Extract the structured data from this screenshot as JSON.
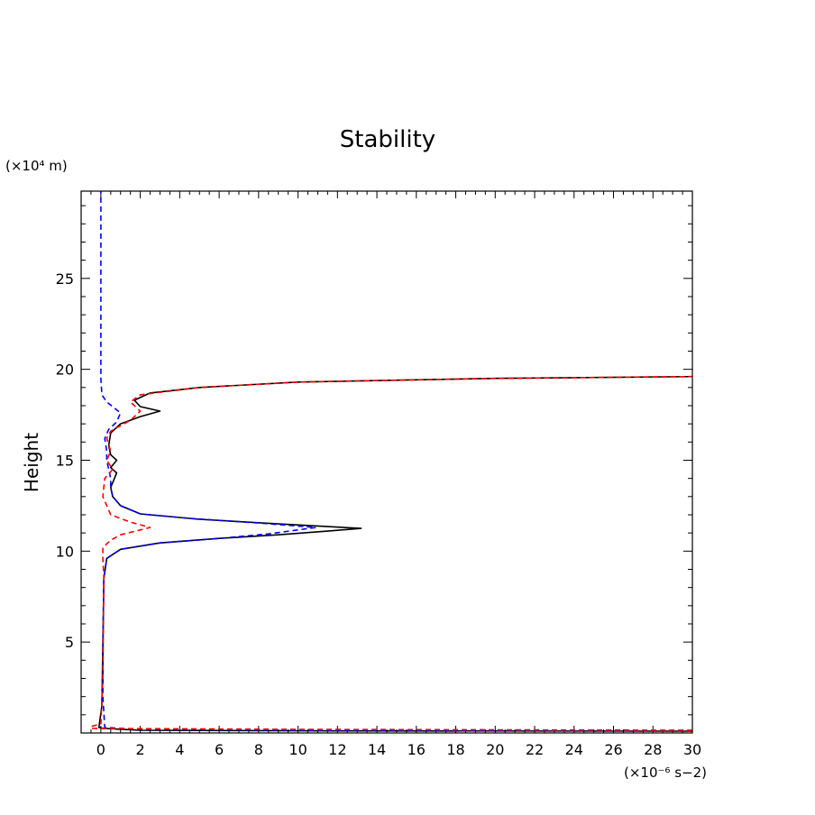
{
  "chart_data": {
    "type": "line",
    "title": "Stability",
    "ylabel": "Height",
    "xlabel": "",
    "y_unit": "(×10⁴ m)",
    "x_unit": "(×10⁻⁶ s−2)",
    "xlim": [
      -1,
      30
    ],
    "ylim": [
      0,
      29.8
    ],
    "x_ticks": [
      0,
      2,
      4,
      6,
      8,
      10,
      12,
      14,
      16,
      18,
      20,
      22,
      24,
      26,
      28,
      30
    ],
    "y_ticks": [
      5,
      10,
      15,
      20,
      25
    ],
    "grid": false,
    "legend": "none",
    "series": [
      {
        "color": "#000000",
        "dash": "solid",
        "points": [
          [
            30,
            0.1
          ],
          [
            10,
            0.12
          ],
          [
            2,
            0.15
          ],
          [
            0.2,
            0.25
          ],
          [
            -0.1,
            0.3
          ],
          [
            0.05,
            1.5
          ],
          [
            0.1,
            5
          ],
          [
            0.15,
            8.5
          ],
          [
            0.3,
            9.6
          ],
          [
            1.0,
            10.1
          ],
          [
            3.0,
            10.45
          ],
          [
            6.0,
            10.7
          ],
          [
            9.0,
            10.9
          ],
          [
            11.5,
            11.1
          ],
          [
            13.2,
            11.25
          ],
          [
            9.0,
            11.5
          ],
          [
            5.0,
            11.75
          ],
          [
            2.0,
            12.05
          ],
          [
            1.0,
            12.5
          ],
          [
            0.6,
            13.0
          ],
          [
            0.5,
            13.5
          ],
          [
            0.8,
            14.3
          ],
          [
            0.5,
            14.6
          ],
          [
            0.8,
            15.0
          ],
          [
            0.5,
            15.3
          ],
          [
            0.4,
            15.8
          ],
          [
            0.5,
            16.5
          ],
          [
            1.0,
            17.0
          ],
          [
            2.0,
            17.4
          ],
          [
            3.0,
            17.7
          ],
          [
            2.0,
            17.95
          ],
          [
            1.7,
            18.3
          ],
          [
            2.5,
            18.7
          ],
          [
            5.0,
            19.0
          ],
          [
            10.0,
            19.3
          ],
          [
            20.0,
            19.5
          ],
          [
            30.0,
            19.6
          ]
        ]
      },
      {
        "color": "#0000ff",
        "dash": "dashed",
        "points": [
          [
            30,
            0.12
          ],
          [
            10,
            0.15
          ],
          [
            2,
            0.2
          ],
          [
            0.2,
            0.3
          ],
          [
            0.1,
            2
          ],
          [
            0.12,
            6
          ],
          [
            0.15,
            8.5
          ],
          [
            0.3,
            9.6
          ],
          [
            1.0,
            10.1
          ],
          [
            3.0,
            10.45
          ],
          [
            6.0,
            10.7
          ],
          [
            8.5,
            10.95
          ],
          [
            10.9,
            11.3
          ],
          [
            8.0,
            11.55
          ],
          [
            4.5,
            11.8
          ],
          [
            2.0,
            12.05
          ],
          [
            1.0,
            12.5
          ],
          [
            0.6,
            13.0
          ],
          [
            0.5,
            13.5
          ],
          [
            0.5,
            14.0
          ],
          [
            0.3,
            15.0
          ],
          [
            0.3,
            15.5
          ],
          [
            0.2,
            16.2
          ],
          [
            0.4,
            16.7
          ],
          [
            0.8,
            17.1
          ],
          [
            1.0,
            17.6
          ],
          [
            0.3,
            18.2
          ],
          [
            0.05,
            18.6
          ],
          [
            0.0,
            19.5
          ],
          [
            0.0,
            25
          ],
          [
            0.0,
            29.8
          ]
        ]
      },
      {
        "color": "#ff0000",
        "dash": "dashed",
        "points": [
          [
            30,
            0.15
          ],
          [
            10,
            0.2
          ],
          [
            -0.5,
            0.25
          ],
          [
            -0.5,
            0.35
          ],
          [
            0.0,
            0.5
          ],
          [
            0.1,
            3
          ],
          [
            0.15,
            8.5
          ],
          [
            0.1,
            9.6
          ],
          [
            0.1,
            10.2
          ],
          [
            0.5,
            10.6
          ],
          [
            1.0,
            10.9
          ],
          [
            2.5,
            11.3
          ],
          [
            1.5,
            11.6
          ],
          [
            0.5,
            12.0
          ],
          [
            0.1,
            13.0
          ],
          [
            0.2,
            14.0
          ],
          [
            0.6,
            14.5
          ],
          [
            0.3,
            15.0
          ],
          [
            0.5,
            15.5
          ],
          [
            0.3,
            16.2
          ],
          [
            0.5,
            16.6
          ],
          [
            1.5,
            17.2
          ],
          [
            2.0,
            17.7
          ],
          [
            1.5,
            18.2
          ],
          [
            2.0,
            18.6
          ],
          [
            5.0,
            19.0
          ],
          [
            10.0,
            19.3
          ],
          [
            20.0,
            19.5
          ],
          [
            30.0,
            19.6
          ]
        ]
      }
    ]
  }
}
